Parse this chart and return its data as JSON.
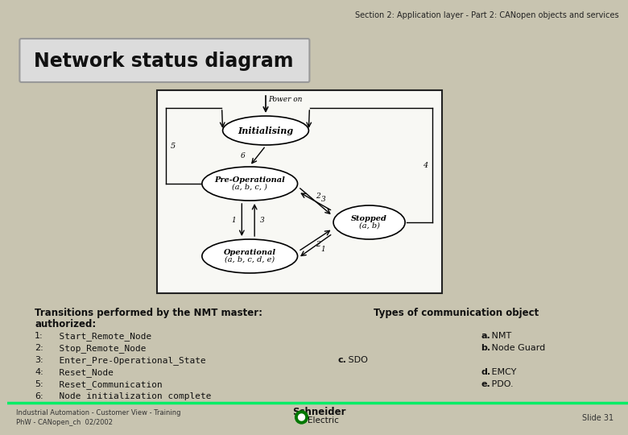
{
  "bg_color": "#c8c4b0",
  "header_text": "Section 2: Application layer - Part 2: CANopen objects and services",
  "title_text": "Network status diagram",
  "transitions_line1": "Transitions performed by the NMT master:",
  "transitions_line2": "authorized:",
  "transitions": [
    "1:  Start_Remote_Node",
    "2:  Stop_Remote_Node",
    "3:  Enter_Pre-Operational_State",
    "4:  Reset_Node",
    "5:  Reset_Communication",
    "6:  Node initialization complete"
  ],
  "types_header": "Types of communication object",
  "type_items": [
    {
      "label": "a.",
      "text": " NMT",
      "col": "right",
      "row": 0
    },
    {
      "label": "b.",
      "text": " Node Guard",
      "col": "right",
      "row": 1
    },
    {
      "label": "c.",
      "text": " SDO",
      "col": "center",
      "row": 2
    },
    {
      "label": "d.",
      "text": " EMCY",
      "col": "right",
      "row": 3
    },
    {
      "label": "e.",
      "text": " PDO.",
      "col": "right",
      "row": 4
    }
  ],
  "footer_left1": "Industrial Automation - Customer View - Training",
  "footer_left2": "PhW - CANopen_ch  02/2002",
  "footer_right": "Slide 31",
  "green_line_color": "#00ee66",
  "ellipse_fill": "#ffffff",
  "ellipse_edge": "#000000",
  "diagram_fill": "#f8f8f4"
}
